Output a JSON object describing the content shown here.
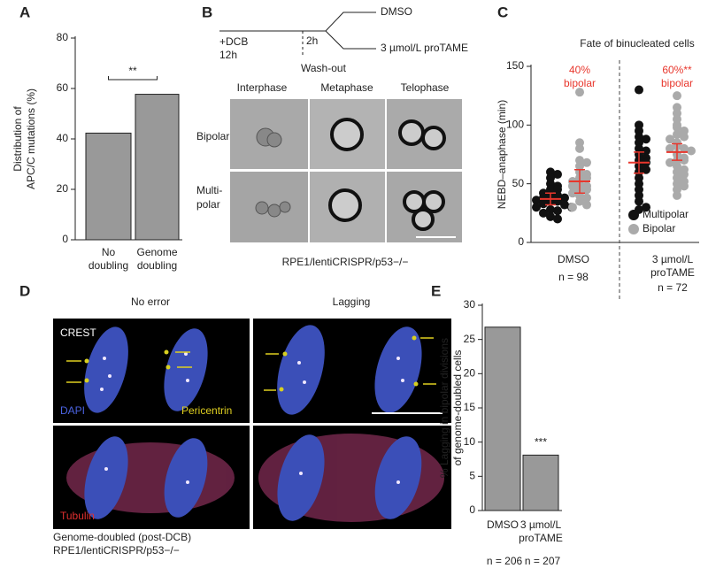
{
  "panel_labels": [
    "A",
    "B",
    "C",
    "D",
    "E"
  ],
  "schematic": {
    "start": [
      "+DCB",
      "12h"
    ],
    "interval": "2h",
    "washout": "Wash-out",
    "branches": [
      "DMSO",
      "3 µmol/L proTAME"
    ]
  },
  "micrograph_b": {
    "columns": [
      "Interphase",
      "Metaphase",
      "Telophase"
    ],
    "rows": [
      [
        "Bipolar"
      ],
      [
        "Multi-",
        "polar"
      ]
    ],
    "caption": "RPE1/lentiCRISPR/p53−/−"
  },
  "micrograph_d": {
    "columns": [
      "No error",
      "Lagging"
    ],
    "stains": {
      "crest": "CREST",
      "dapi": "DAPI",
      "pericentrin": "Pericentrin",
      "tubulin": "Tubulin"
    },
    "caption": [
      "Genome-doubled (post-DCB)",
      "RPE1/lentiCRISPR/p53−/−"
    ]
  },
  "chart_data": [
    {
      "type": "bar",
      "ylabel": [
        "Distribution of",
        "APC/C mutations (%)"
      ],
      "categories": [
        [
          "No",
          "doubling"
        ],
        [
          "Genome",
          "doubling"
        ]
      ],
      "values": [
        42.3,
        57.7
      ],
      "color": "#999999",
      "ylim": [
        0,
        80
      ],
      "yticks": [
        0,
        20,
        40,
        60,
        80
      ],
      "significance": "**"
    },
    {
      "type": "scatter",
      "title": "Fate of binucleated cells",
      "ylabel": "NEBD–anaphase (min)",
      "categories": [
        [
          "DMSO"
        ],
        [
          "3 µmol/L",
          "proTAME"
        ]
      ],
      "n_labels": [
        "n = 98",
        "n = 72"
      ],
      "annotations": [
        [
          "40%",
          "bipolar"
        ],
        [
          "60%**",
          "bipolar"
        ]
      ],
      "annotation_color": "#e8362c",
      "mean_color": "#e8362c",
      "ylim": [
        0,
        150
      ],
      "yticks": [
        0,
        50,
        100,
        150
      ],
      "legend": "lower right",
      "series": [
        {
          "name": "Multipolar",
          "color": "#111111",
          "values": [
            [
              60,
              58,
              55,
              50,
              48,
              45,
              45,
              42,
              40,
              40,
              38,
              38,
              36,
              35,
              35,
              33,
              32,
              30,
              30,
              28,
              27,
              25,
              22,
              20
            ],
            [
              130,
              100,
              95,
              90,
              88,
              85,
              80,
              78,
              75,
              72,
              70,
              68,
              65,
              62,
              60,
              55,
              50,
              45,
              40,
              35,
              30,
              28
            ]
          ],
          "mean": [
            37,
            68
          ],
          "error": [
            5,
            9
          ]
        },
        {
          "name": "Bipolar",
          "color": "#aaaaaa",
          "values": [
            [
              128,
              85,
              80,
              70,
              68,
              65,
              60,
              58,
              55,
              55,
              52,
              50,
              48,
              48,
              45,
              45,
              42,
              40,
              38,
              35,
              32,
              30
            ],
            [
              125,
              115,
              110,
              105,
              100,
              98,
              95,
              92,
              90,
              88,
              85,
              82,
              80,
              80,
              78,
              75,
              72,
              70,
              70,
              68,
              65,
              62,
              60,
              58,
              55,
              52,
              50,
              48,
              45,
              40
            ]
          ],
          "mean": [
            52,
            77
          ],
          "error": [
            10,
            7
          ]
        }
      ]
    },
    {
      "type": "bar",
      "ylabel": [
        "% Lagging in bipolar divisions",
        "of genome-doubled cells"
      ],
      "categories": [
        [
          "DMSO"
        ],
        [
          "3 µmol/L",
          "proTAME"
        ]
      ],
      "n_labels": [
        "n = 206",
        "n = 207"
      ],
      "values": [
        26.8,
        8.1
      ],
      "color": "#999999",
      "ylim": [
        0,
        30
      ],
      "yticks": [
        0,
        5,
        10,
        15,
        20,
        25,
        30
      ],
      "significance": "***"
    }
  ]
}
